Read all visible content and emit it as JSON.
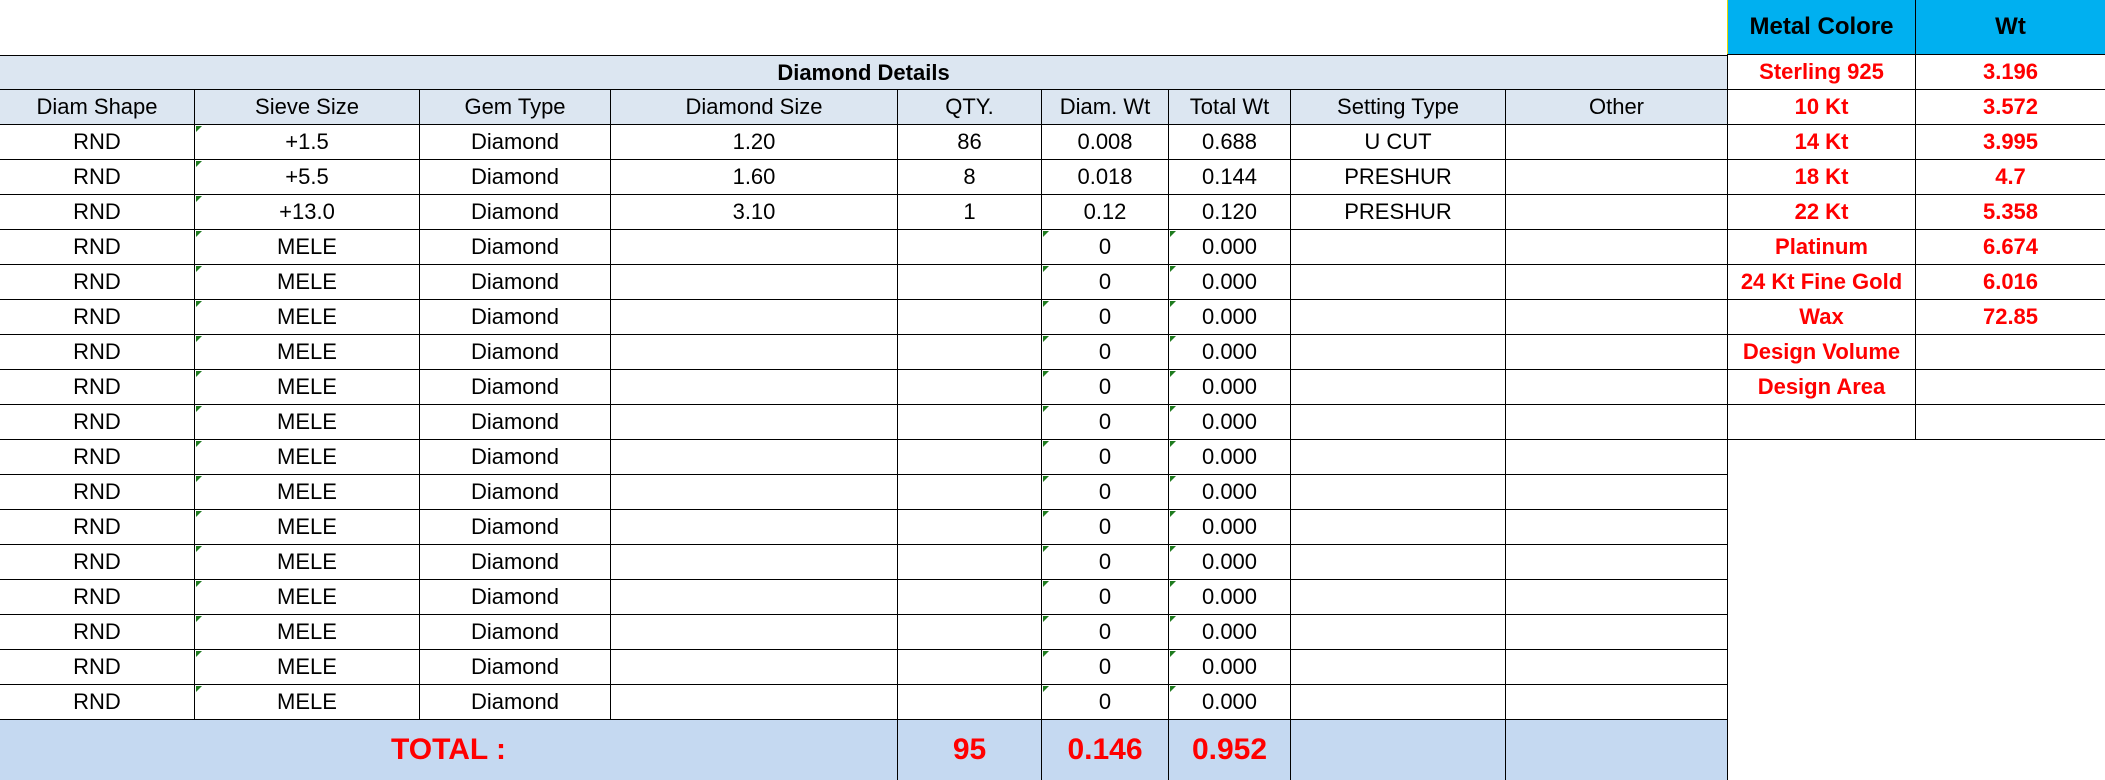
{
  "diamond_table": {
    "title": "Diamond Details",
    "columns": [
      "Diam Shape",
      "Sieve Size",
      "Gem Type",
      "Diamond Size",
      "QTY.",
      "Diam. Wt",
      "Total Wt",
      "Setting Type",
      "Other"
    ],
    "rows": [
      [
        "RND",
        "+1.5",
        "Diamond",
        "1.20",
        "86",
        "0.008",
        "0.688",
        "U CUT",
        ""
      ],
      [
        "RND",
        "+5.5",
        "Diamond",
        "1.60",
        "8",
        "0.018",
        "0.144",
        "PRESHUR",
        ""
      ],
      [
        "RND",
        "+13.0",
        "Diamond",
        "3.10",
        "1",
        "0.12",
        "0.120",
        "PRESHUR",
        ""
      ],
      [
        "RND",
        "MELE",
        "Diamond",
        "",
        "",
        "0",
        "0.000",
        "",
        ""
      ],
      [
        "RND",
        "MELE",
        "Diamond",
        "",
        "",
        "0",
        "0.000",
        "",
        ""
      ],
      [
        "RND",
        "MELE",
        "Diamond",
        "",
        "",
        "0",
        "0.000",
        "",
        ""
      ],
      [
        "RND",
        "MELE",
        "Diamond",
        "",
        "",
        "0",
        "0.000",
        "",
        ""
      ],
      [
        "RND",
        "MELE",
        "Diamond",
        "",
        "",
        "0",
        "0.000",
        "",
        ""
      ],
      [
        "RND",
        "MELE",
        "Diamond",
        "",
        "",
        "0",
        "0.000",
        "",
        ""
      ],
      [
        "RND",
        "MELE",
        "Diamond",
        "",
        "",
        "0",
        "0.000",
        "",
        ""
      ],
      [
        "RND",
        "MELE",
        "Diamond",
        "",
        "",
        "0",
        "0.000",
        "",
        ""
      ],
      [
        "RND",
        "MELE",
        "Diamond",
        "",
        "",
        "0",
        "0.000",
        "",
        ""
      ],
      [
        "RND",
        "MELE",
        "Diamond",
        "",
        "",
        "0",
        "0.000",
        "",
        ""
      ],
      [
        "RND",
        "MELE",
        "Diamond",
        "",
        "",
        "0",
        "0.000",
        "",
        ""
      ],
      [
        "RND",
        "MELE",
        "Diamond",
        "",
        "",
        "0",
        "0.000",
        "",
        ""
      ],
      [
        "RND",
        "MELE",
        "Diamond",
        "",
        "",
        "0",
        "0.000",
        "",
        ""
      ],
      [
        "RND",
        "MELE",
        "Diamond",
        "",
        "",
        "0",
        "0.000",
        "",
        ""
      ]
    ],
    "total": {
      "label": "TOTAL :",
      "qty": "95",
      "diam_wt": "0.146",
      "total_wt": "0.952"
    }
  },
  "metal_table": {
    "columns": [
      "Metal Colore",
      "Wt"
    ],
    "rows": [
      [
        "Sterling 925",
        "3.196"
      ],
      [
        "10 Kt",
        "3.572"
      ],
      [
        "14 Kt",
        "3.995"
      ],
      [
        "18 Kt",
        "4.7"
      ],
      [
        "22 Kt",
        "5.358"
      ],
      [
        "Platinum",
        "6.674"
      ],
      [
        "24 Kt Fine Gold",
        "6.016"
      ],
      [
        "Wax",
        "72.85"
      ],
      [
        "Design Volume",
        ""
      ],
      [
        "Design Area",
        ""
      ],
      [
        "",
        ""
      ]
    ]
  },
  "colors": {
    "header_bg": "#dce6f1",
    "total_bg": "#c5d9f1",
    "metal_header_bg": "#00b0f0",
    "accent_red": "#ff0000"
  }
}
